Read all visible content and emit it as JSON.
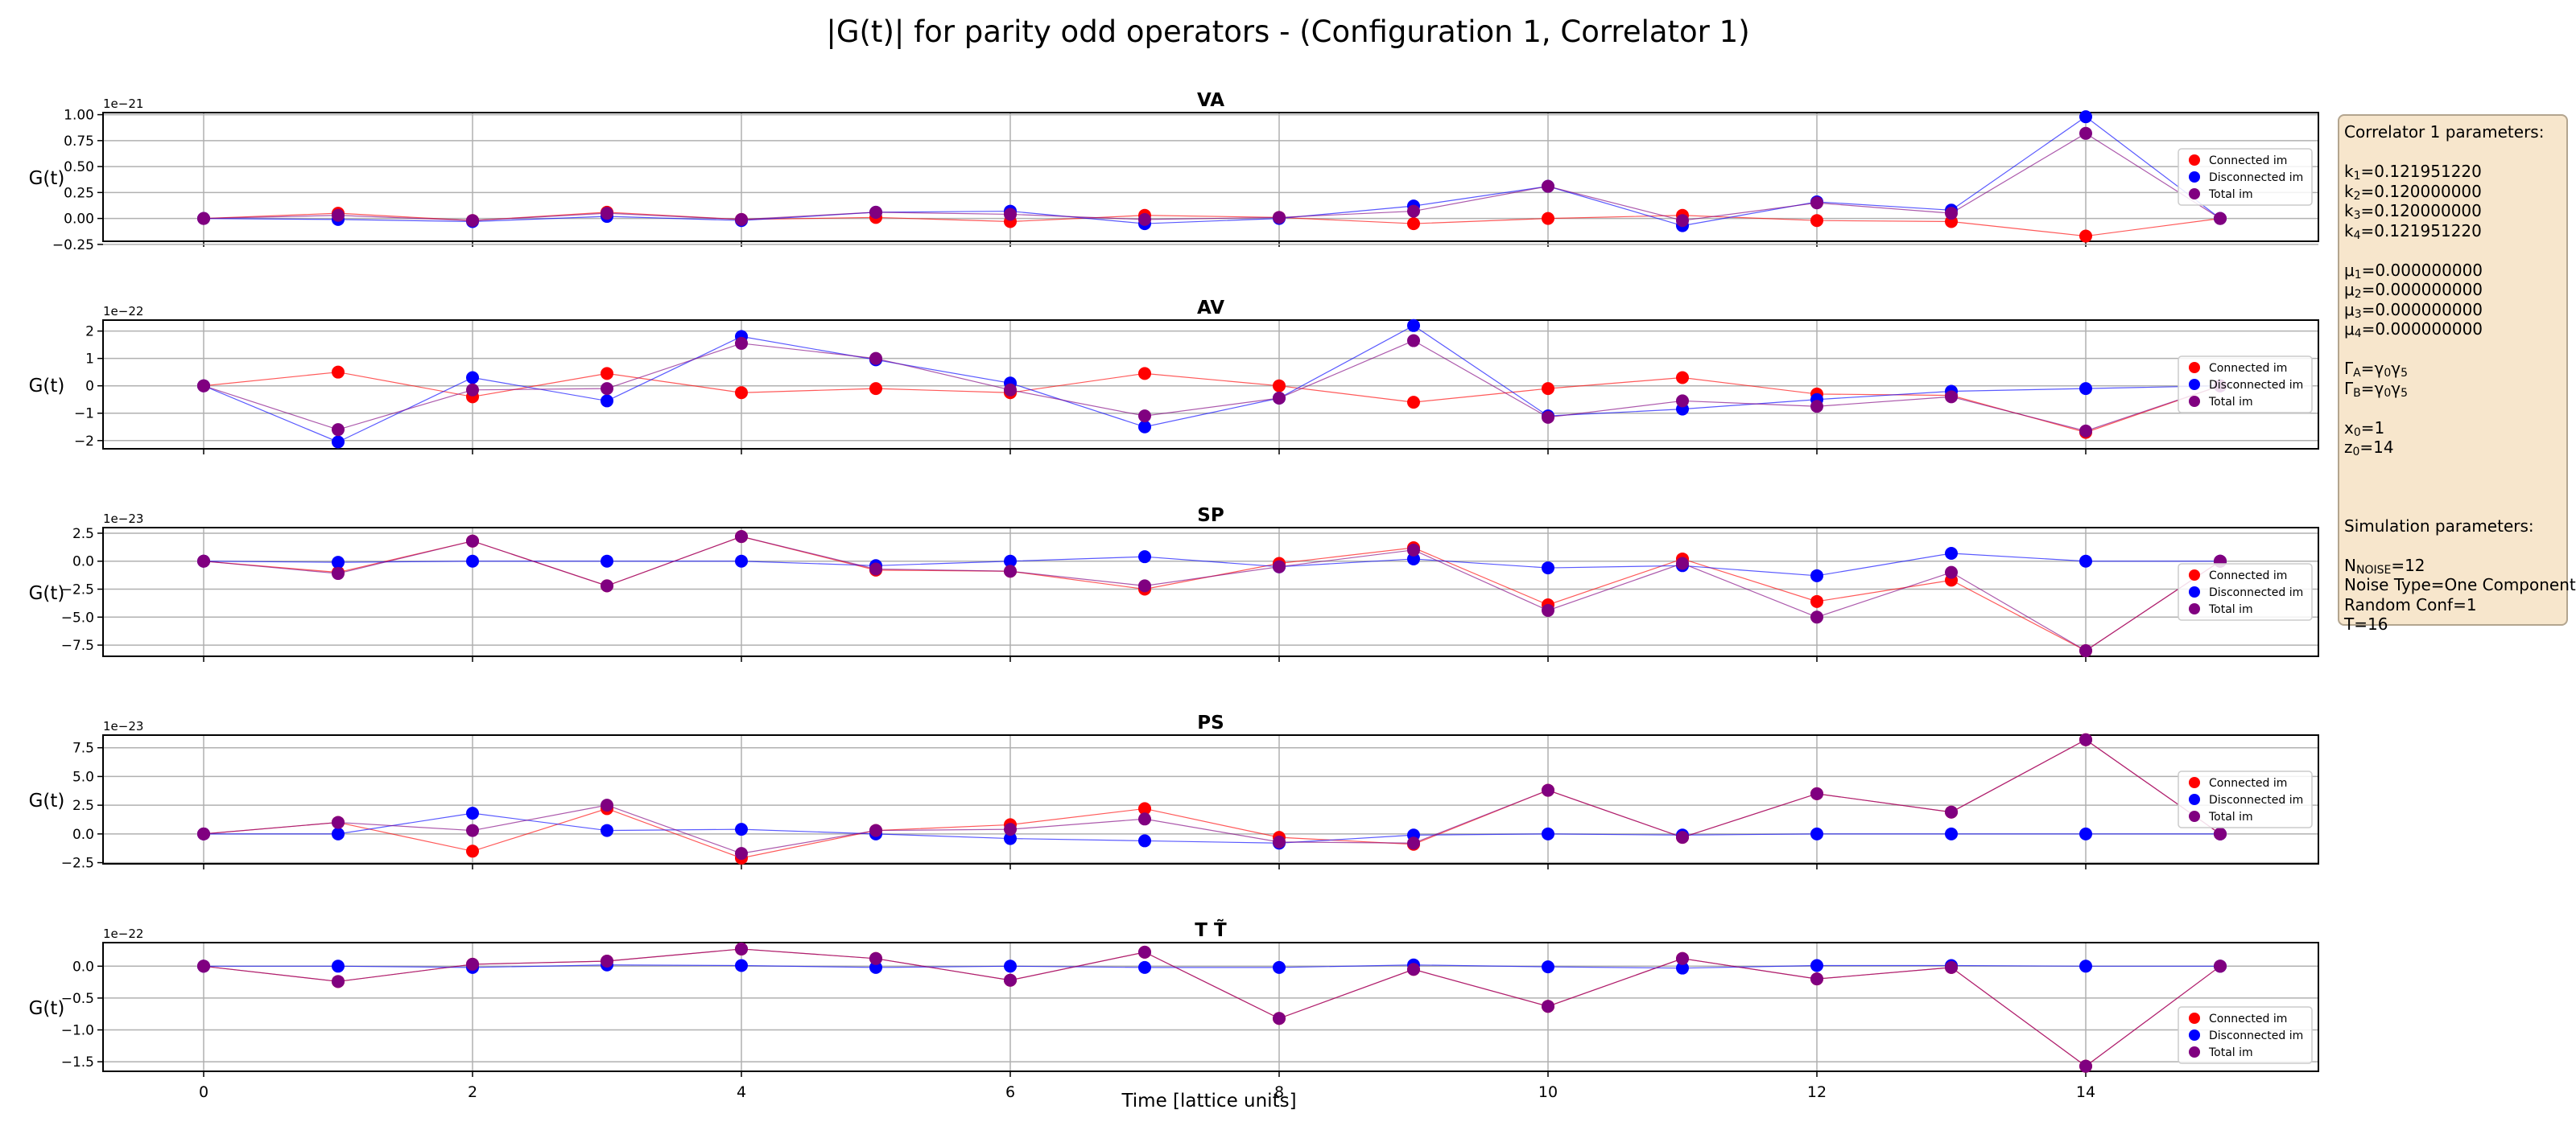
{
  "title": "|G(t)| for parity odd operators - (Configuration 1, Correlator 1)",
  "xlabel": "Time [lattice units]",
  "chart_data": [
    {
      "type": "line",
      "title": "VA",
      "ylabel": "G(t)",
      "exponent_label": "1e−21",
      "x": [
        0,
        1,
        2,
        3,
        4,
        5,
        6,
        7,
        8,
        9,
        10,
        11,
        12,
        13,
        14,
        15
      ],
      "xticks": [
        "0",
        "2",
        "4",
        "6",
        "8",
        "10",
        "12",
        "14"
      ],
      "yticks": [
        "−0.25",
        "0.00",
        "0.25",
        "0.50",
        "0.75",
        "1.00"
      ],
      "ylim": [
        -0.22,
        1.02
      ],
      "grid": true,
      "legend_position": "right",
      "series": [
        {
          "name": "Connected im",
          "color": "#ff0000",
          "values": [
            0.0,
            0.05,
            -0.02,
            0.06,
            -0.01,
            0.01,
            -0.03,
            0.03,
            0.01,
            -0.05,
            0.0,
            0.03,
            -0.02,
            -0.03,
            -0.17,
            0.0
          ]
        },
        {
          "name": "Disconnected im",
          "color": "#0000ff",
          "values": [
            0.0,
            -0.01,
            -0.03,
            0.02,
            -0.02,
            0.06,
            0.07,
            -0.05,
            0.0,
            0.12,
            0.31,
            -0.07,
            0.16,
            0.08,
            0.98,
            0.0
          ]
        },
        {
          "name": "Total im",
          "color": "#800080",
          "values": [
            0.0,
            0.03,
            -0.02,
            0.05,
            -0.01,
            0.06,
            0.04,
            -0.01,
            0.01,
            0.07,
            0.31,
            -0.02,
            0.15,
            0.05,
            0.82,
            0.0
          ]
        }
      ]
    },
    {
      "type": "line",
      "title": "AV",
      "ylabel": "G(t)",
      "exponent_label": "1e−22",
      "x": [
        0,
        1,
        2,
        3,
        4,
        5,
        6,
        7,
        8,
        9,
        10,
        11,
        12,
        13,
        14,
        15
      ],
      "xticks": [
        "0",
        "2",
        "4",
        "6",
        "8",
        "10",
        "12",
        "14"
      ],
      "yticks": [
        "−2",
        "−1",
        "0",
        "1",
        "2"
      ],
      "ylim": [
        -2.3,
        2.4
      ],
      "grid": true,
      "legend_position": "right",
      "series": [
        {
          "name": "Connected im",
          "color": "#ff0000",
          "values": [
            0.0,
            0.5,
            -0.4,
            0.45,
            -0.25,
            -0.1,
            -0.25,
            0.45,
            0.0,
            -0.6,
            -0.1,
            0.3,
            -0.3,
            -0.35,
            -1.7,
            0.0
          ]
        },
        {
          "name": "Disconnected im",
          "color": "#0000ff",
          "values": [
            0.0,
            -2.05,
            0.3,
            -0.55,
            1.8,
            0.95,
            0.1,
            -1.5,
            -0.45,
            2.2,
            -1.1,
            -0.85,
            -0.5,
            -0.2,
            -0.1,
            0.0
          ]
        },
        {
          "name": "Total im",
          "color": "#800080",
          "values": [
            0.0,
            -1.6,
            -0.15,
            -0.1,
            1.55,
            1.0,
            -0.15,
            -1.1,
            -0.45,
            1.65,
            -1.15,
            -0.55,
            -0.75,
            -0.4,
            -1.65,
            0.0
          ]
        }
      ]
    },
    {
      "type": "line",
      "title": "SP",
      "ylabel": "G(t)",
      "exponent_label": "1e−23",
      "x": [
        0,
        1,
        2,
        3,
        4,
        5,
        6,
        7,
        8,
        9,
        10,
        11,
        12,
        13,
        14,
        15
      ],
      "xticks": [
        "0",
        "2",
        "4",
        "6",
        "8",
        "10",
        "12",
        "14"
      ],
      "yticks": [
        "−7.5",
        "−5.0",
        "−2.5",
        "0.0",
        "2.5"
      ],
      "ylim": [
        -8.5,
        3.0
      ],
      "grid": true,
      "legend_position": "right",
      "series": [
        {
          "name": "Connected im",
          "color": "#ff0000",
          "values": [
            0.0,
            -1.0,
            1.8,
            -2.2,
            2.2,
            -0.8,
            -0.9,
            -2.5,
            -0.2,
            1.2,
            -3.9,
            0.2,
            -3.6,
            -1.7,
            -8.0,
            0.0
          ]
        },
        {
          "name": "Disconnected im",
          "color": "#0000ff",
          "values": [
            0.0,
            -0.1,
            0.0,
            0.0,
            0.0,
            -0.4,
            0.0,
            0.4,
            -0.5,
            0.2,
            -0.6,
            -0.4,
            -1.3,
            0.7,
            0.0,
            0.0
          ]
        },
        {
          "name": "Total im",
          "color": "#800080",
          "values": [
            0.0,
            -1.1,
            1.8,
            -2.2,
            2.2,
            -0.7,
            -0.9,
            -2.2,
            -0.5,
            1.0,
            -4.4,
            -0.2,
            -5.0,
            -1.0,
            -8.0,
            0.0
          ]
        }
      ]
    },
    {
      "type": "line",
      "title": "PS",
      "ylabel": "G(t)",
      "exponent_label": "1e−23",
      "x": [
        0,
        1,
        2,
        3,
        4,
        5,
        6,
        7,
        8,
        9,
        10,
        11,
        12,
        13,
        14,
        15
      ],
      "xticks": [
        "0",
        "2",
        "4",
        "6",
        "8",
        "10",
        "12",
        "14"
      ],
      "yticks": [
        "−2.5",
        "0.0",
        "2.5",
        "5.0",
        "7.5"
      ],
      "ylim": [
        -2.6,
        8.6
      ],
      "grid": true,
      "legend_position": "right",
      "series": [
        {
          "name": "Connected im",
          "color": "#ff0000",
          "values": [
            0.0,
            1.0,
            -1.5,
            2.2,
            -2.1,
            0.3,
            0.8,
            2.2,
            -0.3,
            -0.9,
            3.8,
            -0.3,
            3.5,
            1.9,
            8.2,
            0.0
          ]
        },
        {
          "name": "Disconnected im",
          "color": "#0000ff",
          "values": [
            0.0,
            0.0,
            1.8,
            0.3,
            0.4,
            0.0,
            -0.4,
            -0.6,
            -0.8,
            -0.1,
            0.0,
            -0.1,
            0.0,
            0.0,
            0.0,
            0.0
          ]
        },
        {
          "name": "Total im",
          "color": "#800080",
          "values": [
            0.0,
            1.0,
            0.3,
            2.5,
            -1.7,
            0.3,
            0.4,
            1.3,
            -0.7,
            -0.8,
            3.8,
            -0.3,
            3.5,
            1.9,
            8.2,
            0.0
          ]
        }
      ]
    },
    {
      "type": "line",
      "title": "T T̃",
      "ylabel": "G(t)",
      "exponent_label": "1e−22",
      "x": [
        0,
        1,
        2,
        3,
        4,
        5,
        6,
        7,
        8,
        9,
        10,
        11,
        12,
        13,
        14,
        15
      ],
      "xticks": [
        "0",
        "2",
        "4",
        "6",
        "8",
        "10",
        "12",
        "14"
      ],
      "yticks": [
        "−1.5",
        "−1.0",
        "−0.5",
        "0.0"
      ],
      "ylim": [
        -1.65,
        0.37
      ],
      "grid": true,
      "legend_position": "lower right",
      "series": [
        {
          "name": "Connected im",
          "color": "#ff0000",
          "values": [
            0.0,
            -0.24,
            0.03,
            0.08,
            0.27,
            0.12,
            -0.22,
            0.22,
            -0.82,
            -0.05,
            -0.63,
            0.12,
            -0.2,
            -0.02,
            -1.57,
            0.0
          ]
        },
        {
          "name": "Disconnected im",
          "color": "#0000ff",
          "values": [
            0.0,
            0.0,
            -0.02,
            0.02,
            0.01,
            -0.02,
            0.0,
            -0.02,
            -0.02,
            0.02,
            -0.01,
            -0.03,
            0.01,
            0.01,
            0.0,
            0.0
          ]
        },
        {
          "name": "Total im",
          "color": "#800080",
          "values": [
            0.0,
            -0.24,
            0.03,
            0.08,
            0.27,
            0.12,
            -0.22,
            0.22,
            -0.82,
            -0.05,
            -0.63,
            0.12,
            -0.2,
            -0.02,
            -1.57,
            0.0
          ]
        }
      ]
    }
  ],
  "params": {
    "header": "Correlator 1 parameters:",
    "k": [
      {
        "sym": "k",
        "sub": "1",
        "val": "=0.121951220"
      },
      {
        "sym": "k",
        "sub": "2",
        "val": "=0.120000000"
      },
      {
        "sym": "k",
        "sub": "3",
        "val": "=0.120000000"
      },
      {
        "sym": "k",
        "sub": "4",
        "val": "=0.121951220"
      }
    ],
    "mu": [
      {
        "sym": "μ",
        "sub": "1",
        "val": "=0.000000000"
      },
      {
        "sym": "μ",
        "sub": "2",
        "val": "=0.000000000"
      },
      {
        "sym": "μ",
        "sub": "3",
        "val": "=0.000000000"
      },
      {
        "sym": "μ",
        "sub": "4",
        "val": "=0.000000000"
      }
    ],
    "gamma_a": {
      "sym": "Γ",
      "sub": "A",
      "eq": "=γ",
      "s1": "0",
      "g": "γ",
      "s2": "5"
    },
    "gamma_b": {
      "sym": "Γ",
      "sub": "B",
      "eq": "=γ",
      "s1": "0",
      "g": "γ",
      "s2": "5"
    },
    "x0": {
      "sym": "x",
      "sub": "0",
      "val": "=1"
    },
    "z0": {
      "sym": "z",
      "sub": "0",
      "val": "=14"
    },
    "sim_header": "Simulation parameters:",
    "nnoise": {
      "sym": "N",
      "sub": "NOISE",
      "val": "=12"
    },
    "noise_type": "Noise Type=One Component",
    "random_conf": "Random Conf=1",
    "t_label": "T=16"
  }
}
